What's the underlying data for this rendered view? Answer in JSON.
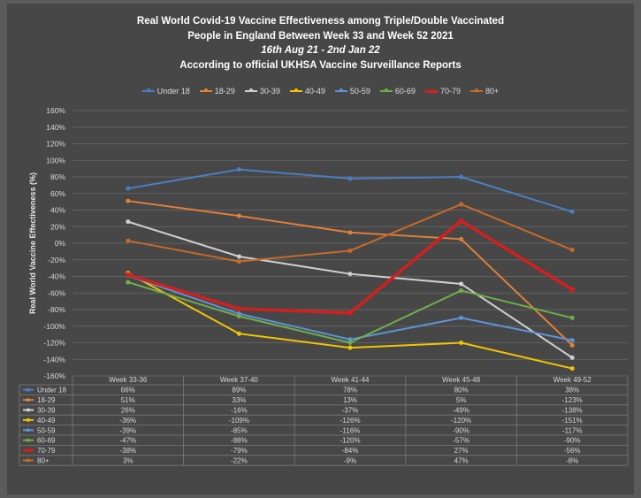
{
  "chart_data": {
    "type": "line",
    "title": "Real World Covid-19 Vaccine Effectiveness among Triple/Double Vaccinated",
    "title_lines": [
      "Real World Covid-19 Vaccine Effectiveness among Triple/Double Vaccinated",
      "People in England Between Week 33 and Week 52 2021",
      "16th Aug 21 - 2nd Jan 22",
      "According to official UKHSA Vaccine Surveillance Reports"
    ],
    "ylabel": "Real World Vaccine Effectiveness (%)",
    "ylim": [
      -160,
      160
    ],
    "ytick_step": 20,
    "yticks": [
      "160%",
      "140%",
      "120%",
      "100%",
      "80%",
      "60%",
      "40%",
      "20%",
      "0%",
      "-20%",
      "-40%",
      "-60%",
      "-80%",
      "-100%",
      "-120%",
      "-140%",
      "-160%"
    ],
    "grid": true,
    "legend_position": "top",
    "categories": [
      "Week 33-36",
      "Week 37-40",
      "Week 41-44",
      "Week 45-48",
      "Week 49-52"
    ],
    "series": [
      {
        "name": "Under 18",
        "color": "#4a7fc4",
        "values": [
          66,
          89,
          78,
          80,
          38
        ],
        "labels": [
          "66%",
          "89%",
          "78%",
          "80%",
          "38%"
        ]
      },
      {
        "name": "18-29",
        "color": "#e0803a",
        "values": [
          51,
          33,
          13,
          5,
          -123
        ],
        "labels": [
          "51%",
          "33%",
          "13%",
          "5%",
          "-123%"
        ]
      },
      {
        "name": "30-39",
        "color": "#d0d0d0",
        "values": [
          26,
          -16,
          -37,
          -49,
          -138
        ],
        "labels": [
          "26%",
          "-16%",
          "-37%",
          "-49%",
          "-138%"
        ]
      },
      {
        "name": "40-49",
        "color": "#f2c500",
        "values": [
          -36,
          -109,
          -126,
          -120,
          -151
        ],
        "labels": [
          "-36%",
          "-109%",
          "-126%",
          "-120%",
          "-151%"
        ]
      },
      {
        "name": "50-59",
        "color": "#5d93d6",
        "values": [
          -39,
          -85,
          -116,
          -90,
          -117
        ],
        "labels": [
          "-39%",
          "-85%",
          "-116%",
          "-90%",
          "-117%"
        ]
      },
      {
        "name": "60-69",
        "color": "#6fae4a",
        "values": [
          -47,
          -88,
          -120,
          -57,
          -90
        ],
        "labels": [
          "-47%",
          "-88%",
          "-120%",
          "-57%",
          "-90%"
        ]
      },
      {
        "name": "70-79",
        "color": "#d41f1f",
        "values": [
          -38,
          -79,
          -84,
          27,
          -56
        ],
        "labels": [
          "-38%",
          "-79%",
          "-84%",
          "27%",
          "-56%"
        ],
        "thick": true
      },
      {
        "name": "80+",
        "color": "#c86a28",
        "values": [
          3,
          -22,
          -9,
          47,
          -8
        ],
        "labels": [
          "3%",
          "-22%",
          "-9%",
          "47%",
          "-8%"
        ]
      }
    ]
  }
}
